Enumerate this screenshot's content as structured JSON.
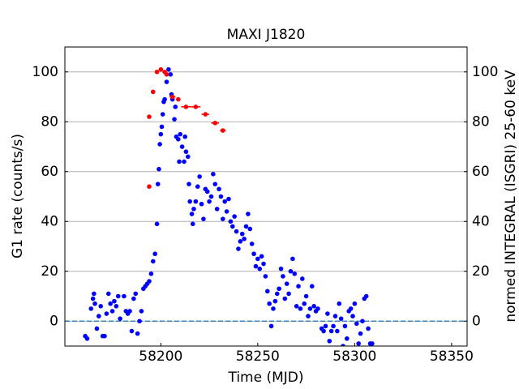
{
  "chart_data": {
    "type": "scatter",
    "title": "MAXI J1820",
    "xlabel": "Time (MJD)",
    "ylabel": "G1 rate (counts/s)",
    "y2label": "normed INTEGRAL (ISGRI) 25-60 keV",
    "xlim": [
      58150.5,
      58358
    ],
    "xticks": [
      58200,
      58250,
      58300,
      58350
    ],
    "ylim": [
      -10,
      110
    ],
    "yticks": [
      0,
      20,
      40,
      60,
      80,
      100
    ],
    "y2lim": [
      -10,
      110
    ],
    "y2ticks": [
      0,
      20,
      40,
      60,
      80,
      100
    ],
    "grid": true,
    "hline": 0,
    "hline_color": "#1f77b4",
    "series": [
      {
        "color": "#0000ff",
        "x": [
          58161,
          58162,
          58164,
          58165,
          58165.5,
          58166,
          58167,
          58168,
          58169,
          58170,
          58171,
          58172,
          58173,
          58174,
          58175,
          58176,
          58177,
          58178,
          58179,
          58181,
          58182,
          58183,
          58184,
          58185,
          58186,
          58187,
          58188,
          58189,
          58190,
          58191,
          58192,
          58193,
          58194,
          58195,
          58196,
          58197,
          58198,
          58198.5,
          58199,
          58199.5,
          58200,
          58200.5,
          58201,
          58201.5,
          58202,
          58203,
          58204,
          58205,
          58205.5,
          58206,
          58207,
          58207.5,
          58208,
          58209,
          58209.5,
          58210,
          58211,
          58212,
          58212.5,
          58213,
          58214,
          58214.5,
          58215,
          58216,
          58216.5,
          58217,
          58218,
          58219,
          58220,
          58221,
          58222,
          58223,
          58224,
          58225,
          58226,
          58227,
          58228,
          58229,
          58230,
          58231,
          58232,
          58233,
          58234,
          58235,
          58236,
          58237,
          58238,
          58239,
          58240,
          58241,
          58242,
          58243,
          58244,
          58245,
          58246,
          58247,
          58248,
          58249,
          58250,
          58251,
          58252,
          58253,
          58254,
          58255,
          58256,
          58257,
          58258,
          58259,
          58260,
          58261,
          58262,
          58263,
          58264,
          58265,
          58266,
          58267,
          58268,
          58269,
          58270,
          58271,
          58272,
          58273,
          58274,
          58275,
          58276,
          58277,
          58278,
          58279,
          58280,
          58281,
          58283,
          58284,
          58285,
          58286,
          58287,
          58288,
          58289,
          58290,
          58291,
          58292,
          58293,
          58294,
          58295,
          58296,
          58297,
          58298,
          58299,
          58300,
          58301,
          58302,
          58303,
          58304,
          58305,
          58306,
          58307,
          58308,
          58309
        ],
        "values": [
          -6,
          -7,
          5,
          9,
          11,
          7,
          -3,
          2,
          6,
          -6,
          -6,
          3,
          11,
          7,
          4,
          8,
          6,
          10,
          1,
          10,
          4,
          3,
          4,
          -4,
          9,
          11,
          -5,
          0,
          4,
          13,
          14,
          15,
          16,
          19,
          24,
          27,
          39,
          55,
          61,
          71,
          75,
          78,
          83,
          88,
          89,
          96,
          101,
          99,
          91,
          89,
          81,
          86,
          74,
          73,
          64,
          75,
          70,
          64,
          74,
          68,
          66,
          55,
          48,
          43,
          39,
          45,
          48,
          54,
          58,
          47,
          41,
          53,
          52,
          48,
          50,
          59,
          55,
          45,
          53,
          50,
          41,
          48,
          44,
          49,
          40,
          38,
          42,
          36,
          29,
          32,
          35,
          33,
          38,
          43,
          37,
          31,
          27,
          22,
          25,
          21,
          26,
          23,
          18,
          12,
          7,
          -2,
          5,
          8,
          11,
          13,
          21,
          18,
          9,
          15,
          11,
          20,
          25,
          19,
          6,
          14,
          5,
          17,
          7,
          10,
          2,
          5,
          14,
          6,
          4,
          5,
          -3,
          -4,
          -2,
          3,
          -8,
          -4,
          -2,
          2,
          -4,
          7,
          1,
          -10,
          -2,
          -7,
          4,
          5,
          2,
          7,
          -1,
          -9,
          -5,
          0,
          9,
          10,
          -3,
          -9,
          -9
        ]
      },
      {
        "color": "#ff0000",
        "axis": "y2",
        "x": [
          58194,
          58194,
          58196,
          58198,
          58200,
          58202,
          58203,
          58206,
          58209,
          58213,
          58218,
          58223,
          58228,
          58232
        ],
        "values": [
          54,
          82,
          92,
          100,
          101,
          100,
          99,
          90,
          89,
          86,
          86,
          83,
          79.5,
          76.5
        ],
        "xerr": [
          0.5,
          0.5,
          0.5,
          1,
          1,
          1,
          1,
          1.5,
          1,
          2.5,
          2.5,
          2,
          2,
          1.5
        ]
      }
    ]
  }
}
